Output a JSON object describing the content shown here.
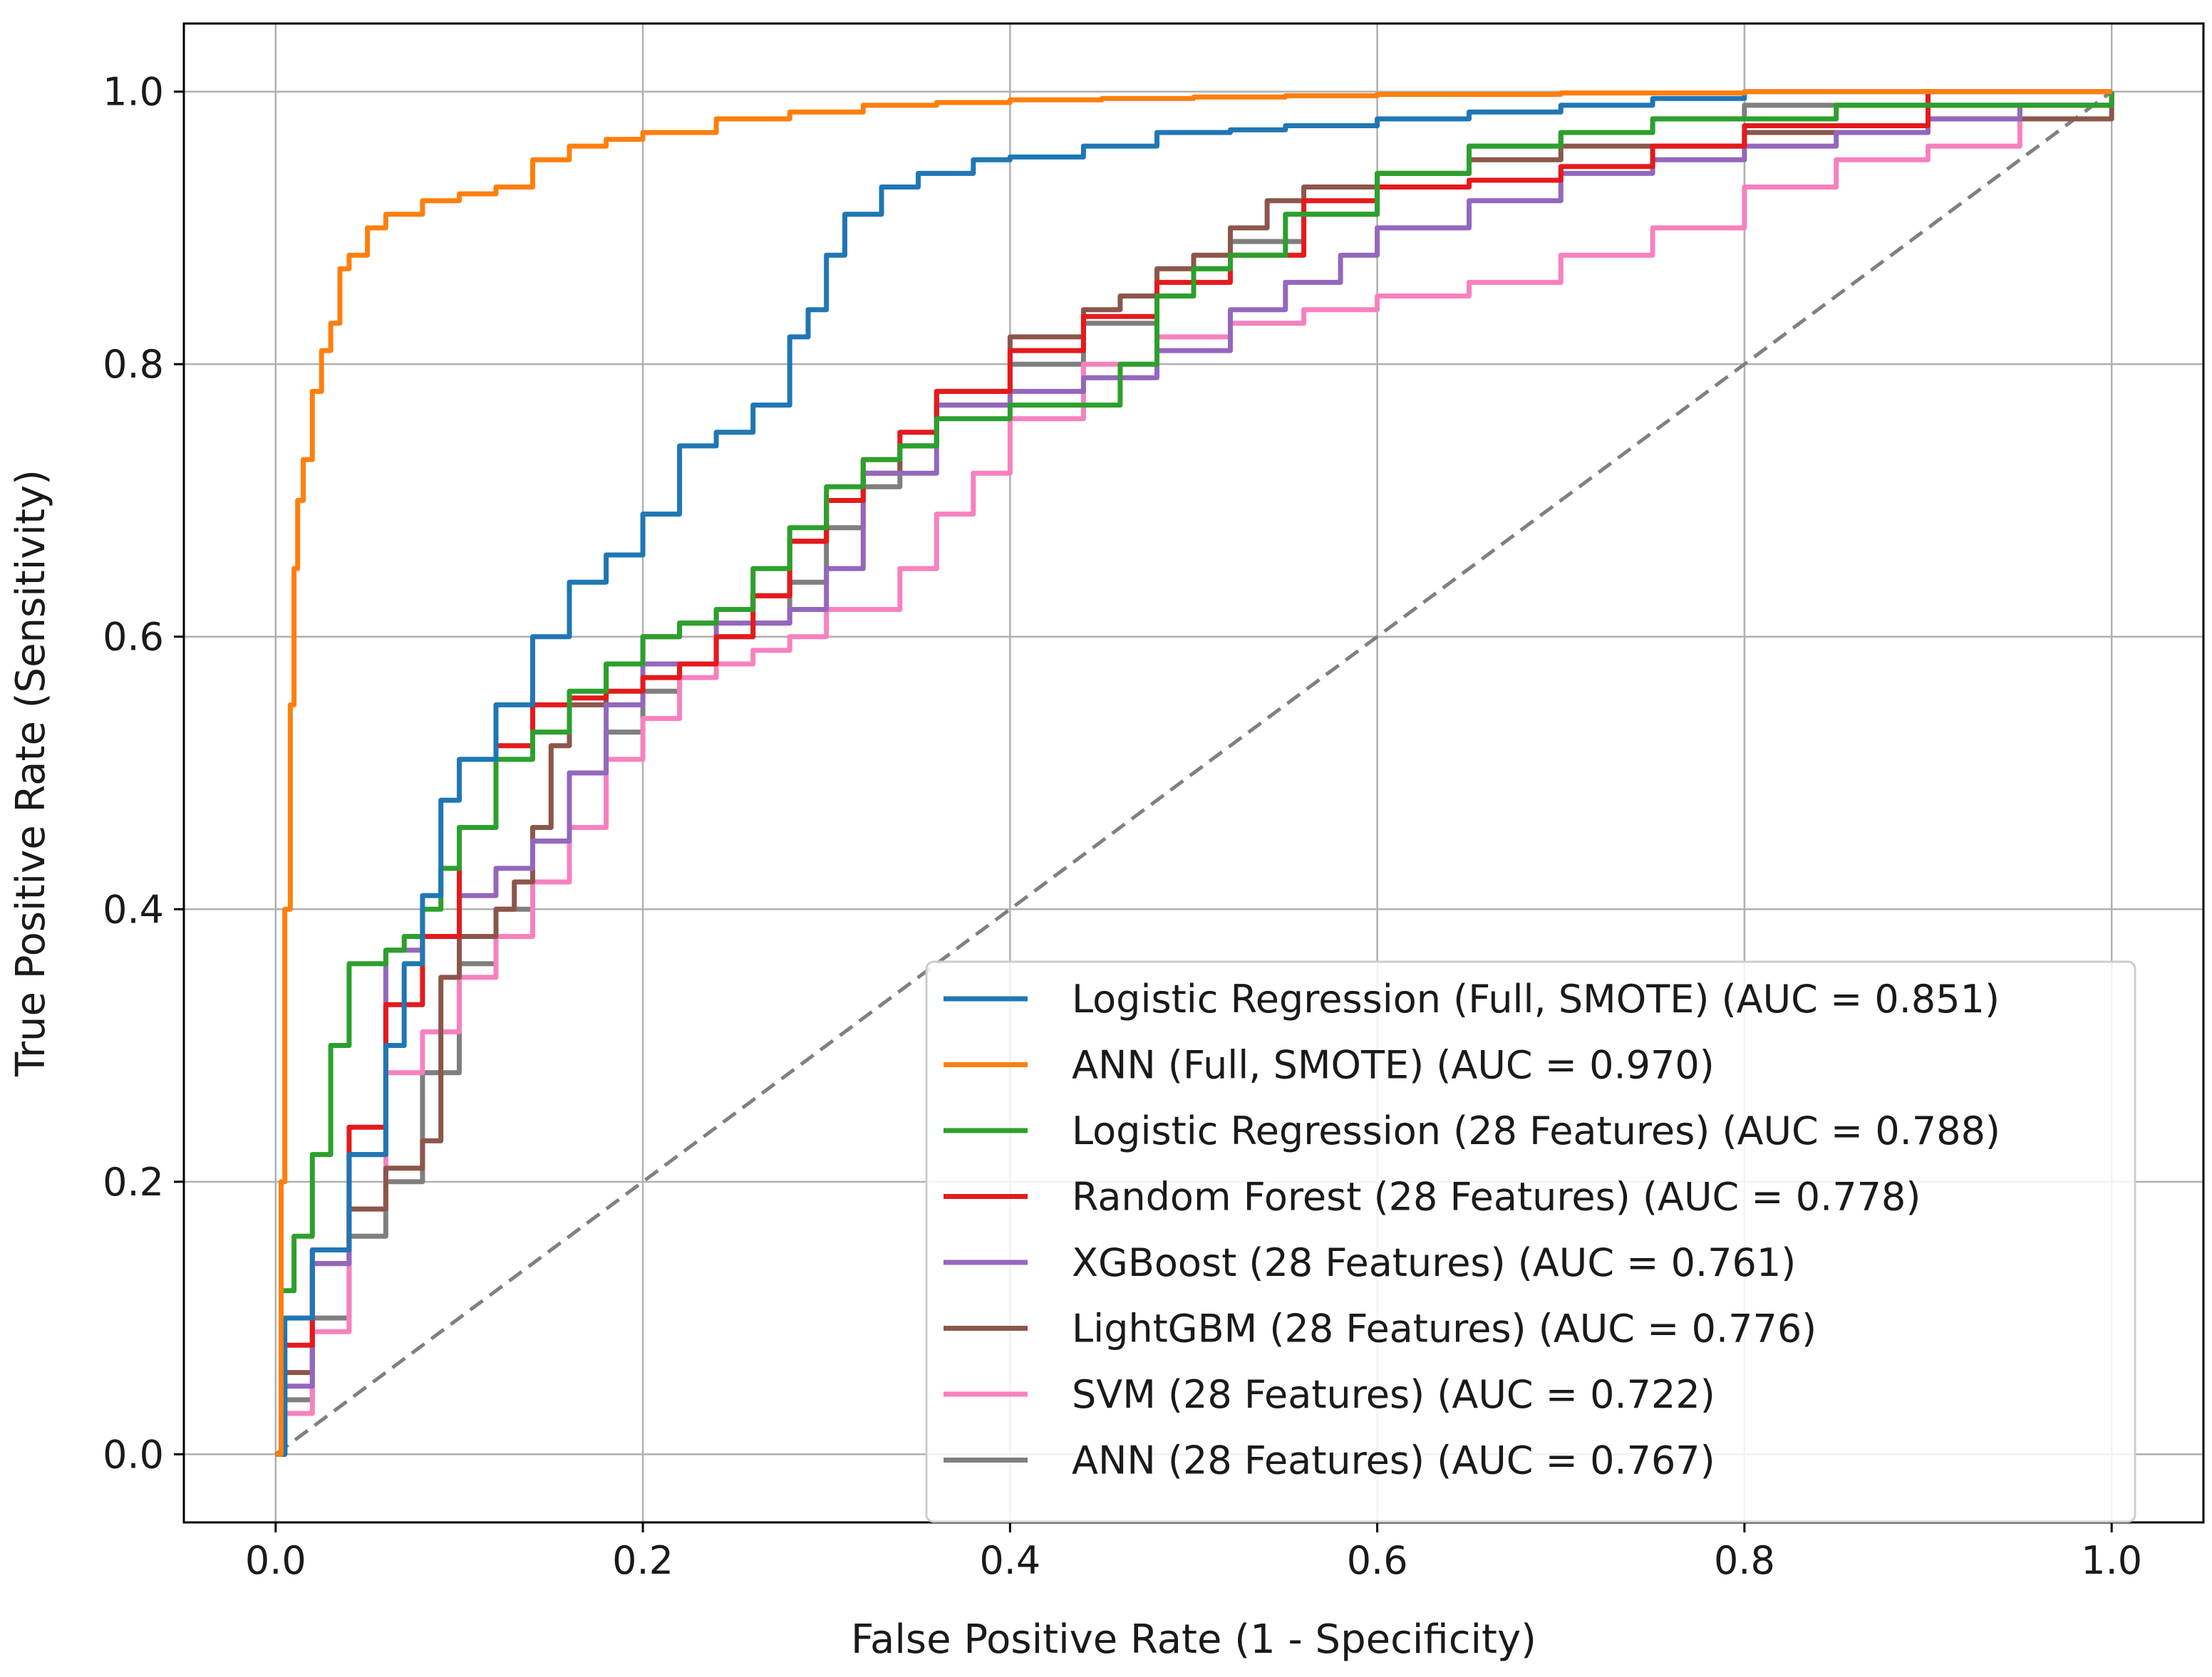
{
  "chart_data": {
    "type": "line",
    "title": "",
    "xlabel": "False Positive Rate (1 - Specificity)",
    "ylabel": "True Positive Rate (Sensitivity)",
    "xlim": [
      -0.05,
      1.05
    ],
    "ylim": [
      -0.05,
      1.05
    ],
    "xticks": [
      "0.0",
      "0.2",
      "0.4",
      "0.6",
      "0.8",
      "1.0"
    ],
    "yticks": [
      "0.0",
      "0.2",
      "0.4",
      "0.6",
      "0.8",
      "1.0"
    ],
    "grid": true,
    "legend_position": "lower-right",
    "diagonal": {
      "name": "chance",
      "color": "#808080",
      "x": [
        0,
        1
      ],
      "y": [
        0,
        1
      ]
    },
    "series": [
      {
        "name": "Logistic Regression (Full, SMOTE) (AUC = 0.851)",
        "color": "#1f77b4",
        "x": [
          0,
          0.005,
          0.02,
          0.04,
          0.06,
          0.07,
          0.08,
          0.09,
          0.1,
          0.12,
          0.14,
          0.16,
          0.18,
          0.2,
          0.22,
          0.24,
          0.26,
          0.28,
          0.29,
          0.3,
          0.31,
          0.33,
          0.35,
          0.38,
          0.4,
          0.44,
          0.48,
          0.52,
          0.55,
          0.6,
          0.65,
          0.7,
          0.75,
          0.8,
          1.0
        ],
        "y": [
          0,
          0.1,
          0.15,
          0.22,
          0.3,
          0.36,
          0.41,
          0.48,
          0.51,
          0.55,
          0.6,
          0.64,
          0.66,
          0.69,
          0.74,
          0.75,
          0.77,
          0.82,
          0.84,
          0.88,
          0.91,
          0.93,
          0.94,
          0.95,
          0.952,
          0.96,
          0.97,
          0.972,
          0.975,
          0.98,
          0.985,
          0.99,
          0.995,
          1.0,
          1.0
        ]
      },
      {
        "name": "ANN (Full, SMOTE) (AUC = 0.970)",
        "color": "#ff7f0e",
        "x": [
          0,
          0.003,
          0.005,
          0.008,
          0.01,
          0.012,
          0.015,
          0.02,
          0.025,
          0.03,
          0.035,
          0.04,
          0.05,
          0.06,
          0.08,
          0.1,
          0.12,
          0.14,
          0.16,
          0.18,
          0.2,
          0.24,
          0.28,
          0.32,
          0.36,
          0.4,
          0.45,
          0.5,
          0.55,
          0.6,
          0.7,
          0.8,
          1.0
        ],
        "y": [
          0,
          0.2,
          0.4,
          0.55,
          0.65,
          0.7,
          0.73,
          0.78,
          0.81,
          0.83,
          0.87,
          0.88,
          0.9,
          0.91,
          0.92,
          0.925,
          0.93,
          0.95,
          0.96,
          0.965,
          0.97,
          0.98,
          0.985,
          0.99,
          0.992,
          0.994,
          0.995,
          0.996,
          0.997,
          0.998,
          0.999,
          1.0,
          1.0
        ]
      },
      {
        "name": "Logistic Regression (28 Features) (AUC = 0.788)",
        "color": "#2ca02c",
        "x": [
          0,
          0.003,
          0.01,
          0.02,
          0.03,
          0.04,
          0.06,
          0.07,
          0.08,
          0.09,
          0.1,
          0.12,
          0.14,
          0.16,
          0.18,
          0.2,
          0.22,
          0.24,
          0.26,
          0.28,
          0.3,
          0.32,
          0.34,
          0.36,
          0.4,
          0.44,
          0.46,
          0.48,
          0.5,
          0.52,
          0.55,
          0.6,
          0.65,
          0.7,
          0.75,
          0.85,
          1.0
        ],
        "y": [
          0,
          0.12,
          0.16,
          0.22,
          0.3,
          0.36,
          0.37,
          0.38,
          0.4,
          0.43,
          0.46,
          0.51,
          0.53,
          0.56,
          0.58,
          0.6,
          0.61,
          0.62,
          0.65,
          0.68,
          0.71,
          0.73,
          0.74,
          0.76,
          0.77,
          0.77,
          0.8,
          0.85,
          0.87,
          0.88,
          0.91,
          0.94,
          0.96,
          0.97,
          0.98,
          0.99,
          1.0
        ]
      },
      {
        "name": "Random Forest (28 Features) (AUC = 0.778)",
        "color": "#e41a1c",
        "x": [
          0,
          0.005,
          0.02,
          0.04,
          0.06,
          0.08,
          0.1,
          0.12,
          0.14,
          0.16,
          0.18,
          0.2,
          0.22,
          0.24,
          0.26,
          0.28,
          0.3,
          0.32,
          0.34,
          0.36,
          0.4,
          0.44,
          0.48,
          0.52,
          0.56,
          0.6,
          0.65,
          0.7,
          0.75,
          0.8,
          0.9,
          1.0
        ],
        "y": [
          0,
          0.08,
          0.15,
          0.24,
          0.33,
          0.38,
          0.46,
          0.52,
          0.55,
          0.555,
          0.56,
          0.57,
          0.58,
          0.6,
          0.63,
          0.67,
          0.7,
          0.73,
          0.75,
          0.78,
          0.81,
          0.835,
          0.86,
          0.88,
          0.92,
          0.93,
          0.935,
          0.945,
          0.96,
          0.975,
          1.0,
          1.0
        ]
      },
      {
        "name": "XGBoost (28 Features) (AUC = 0.761)",
        "color": "#9467bd",
        "x": [
          0,
          0.005,
          0.02,
          0.04,
          0.06,
          0.08,
          0.1,
          0.12,
          0.14,
          0.16,
          0.18,
          0.2,
          0.24,
          0.28,
          0.3,
          0.32,
          0.36,
          0.4,
          0.44,
          0.48,
          0.52,
          0.55,
          0.58,
          0.6,
          0.65,
          0.7,
          0.75,
          0.8,
          0.85,
          0.9,
          0.95,
          1.0
        ],
        "y": [
          0,
          0.05,
          0.14,
          0.22,
          0.37,
          0.38,
          0.41,
          0.43,
          0.45,
          0.5,
          0.55,
          0.58,
          0.61,
          0.62,
          0.65,
          0.72,
          0.77,
          0.78,
          0.79,
          0.81,
          0.84,
          0.86,
          0.88,
          0.9,
          0.92,
          0.94,
          0.95,
          0.96,
          0.97,
          0.98,
          0.99,
          1.0
        ]
      },
      {
        "name": "LightGBM (28 Features) (AUC = 0.776)",
        "color": "#8c564b",
        "x": [
          0,
          0.005,
          0.02,
          0.04,
          0.06,
          0.08,
          0.09,
          0.1,
          0.12,
          0.13,
          0.14,
          0.15,
          0.16,
          0.18,
          0.2,
          0.22,
          0.24,
          0.26,
          0.28,
          0.3,
          0.32,
          0.34,
          0.36,
          0.4,
          0.44,
          0.46,
          0.48,
          0.5,
          0.52,
          0.54,
          0.56,
          0.6,
          0.65,
          0.7,
          0.8,
          0.9,
          1.0
        ],
        "y": [
          0,
          0.06,
          0.14,
          0.18,
          0.21,
          0.23,
          0.35,
          0.38,
          0.4,
          0.42,
          0.46,
          0.52,
          0.55,
          0.58,
          0.6,
          0.61,
          0.62,
          0.63,
          0.67,
          0.7,
          0.72,
          0.74,
          0.78,
          0.82,
          0.84,
          0.85,
          0.87,
          0.88,
          0.9,
          0.92,
          0.93,
          0.94,
          0.95,
          0.96,
          0.97,
          0.98,
          1.0
        ]
      },
      {
        "name": "SVM (28 Features) (AUC = 0.722)",
        "color": "#f781bf",
        "x": [
          0,
          0.005,
          0.02,
          0.04,
          0.06,
          0.08,
          0.1,
          0.12,
          0.14,
          0.16,
          0.18,
          0.2,
          0.22,
          0.24,
          0.26,
          0.28,
          0.3,
          0.34,
          0.36,
          0.38,
          0.4,
          0.44,
          0.48,
          0.52,
          0.56,
          0.6,
          0.65,
          0.7,
          0.75,
          0.8,
          0.85,
          0.9,
          0.95,
          1.0
        ],
        "y": [
          0,
          0.03,
          0.09,
          0.18,
          0.28,
          0.31,
          0.35,
          0.38,
          0.42,
          0.46,
          0.51,
          0.54,
          0.57,
          0.58,
          0.59,
          0.6,
          0.62,
          0.65,
          0.69,
          0.72,
          0.76,
          0.8,
          0.82,
          0.83,
          0.84,
          0.85,
          0.86,
          0.88,
          0.9,
          0.93,
          0.95,
          0.96,
          0.99,
          1.0
        ]
      },
      {
        "name": "ANN (28 Features) (AUC = 0.767)",
        "color": "#7f7f7f",
        "x": [
          0,
          0.005,
          0.02,
          0.04,
          0.06,
          0.08,
          0.1,
          0.12,
          0.14,
          0.16,
          0.18,
          0.2,
          0.22,
          0.24,
          0.26,
          0.28,
          0.3,
          0.32,
          0.34,
          0.36,
          0.4,
          0.44,
          0.48,
          0.5,
          0.52,
          0.56,
          0.6,
          0.65,
          0.7,
          0.75,
          0.8,
          1.0
        ],
        "y": [
          0,
          0.04,
          0.1,
          0.16,
          0.2,
          0.28,
          0.36,
          0.4,
          0.45,
          0.5,
          0.53,
          0.56,
          0.58,
          0.6,
          0.61,
          0.64,
          0.68,
          0.71,
          0.74,
          0.77,
          0.8,
          0.83,
          0.85,
          0.87,
          0.89,
          0.91,
          0.94,
          0.96,
          0.97,
          0.98,
          0.99,
          1.0
        ]
      }
    ]
  }
}
